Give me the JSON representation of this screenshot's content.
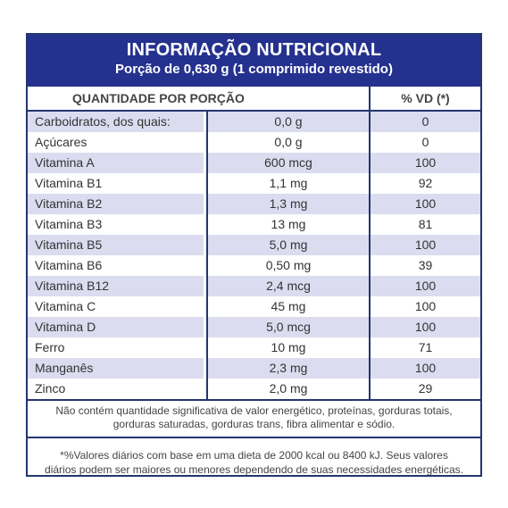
{
  "header": {
    "title": "INFORMAÇÃO NUTRICIONAL",
    "subtitle": "Porção de 0,630 g (1 comprimido revestido)"
  },
  "table": {
    "col_main": "QUANTIDADE POR PORÇÃO",
    "col_vd": "% VD (*)",
    "rows": [
      {
        "name": "Carboidratos, dos quais:",
        "amount": "0,0 g",
        "vd": "0"
      },
      {
        "name": "Açúcares",
        "amount": "0,0 g",
        "vd": "0"
      },
      {
        "name": "Vitamina A",
        "amount": "600 mcg",
        "vd": "100"
      },
      {
        "name": "Vitamina B1",
        "amount": "1,1 mg",
        "vd": "92"
      },
      {
        "name": "Vitamina B2",
        "amount": "1,3 mg",
        "vd": "100"
      },
      {
        "name": "Vitamina B3",
        "amount": "13 mg",
        "vd": "81"
      },
      {
        "name": "Vitamina B5",
        "amount": "5,0 mg",
        "vd": "100"
      },
      {
        "name": "Vitamina B6",
        "amount": "0,50 mg",
        "vd": "39"
      },
      {
        "name": "Vitamina B12",
        "amount": "2,4 mcg",
        "vd": "100"
      },
      {
        "name": "Vitamina C",
        "amount": "45 mg",
        "vd": "100"
      },
      {
        "name": "Vitamina D",
        "amount": "5,0 mcg",
        "vd": "100"
      },
      {
        "name": "Ferro",
        "amount": "10 mg",
        "vd": "71"
      },
      {
        "name": "Manganês",
        "amount": "2,3 mg",
        "vd": "100"
      },
      {
        "name": "Zinco",
        "amount": "2,0 mg",
        "vd": "29"
      }
    ]
  },
  "notes": {
    "line1": "Não contém quantidade significativa de valor energético, proteínas, gorduras totais,",
    "line2": "gorduras saturadas, gorduras trans, fibra alimentar e sódio.",
    "vd_line1": "*%Valores diários com base em uma dieta de 2000 kcal ou 8400 kJ. Seus valores",
    "vd_line2": "diários podem ser maiores ou menores dependendo de suas necessidades energéticas."
  },
  "colors": {
    "header_bg": "#25318e",
    "border": "#22356e",
    "row_shade": "#dcdcf0"
  }
}
